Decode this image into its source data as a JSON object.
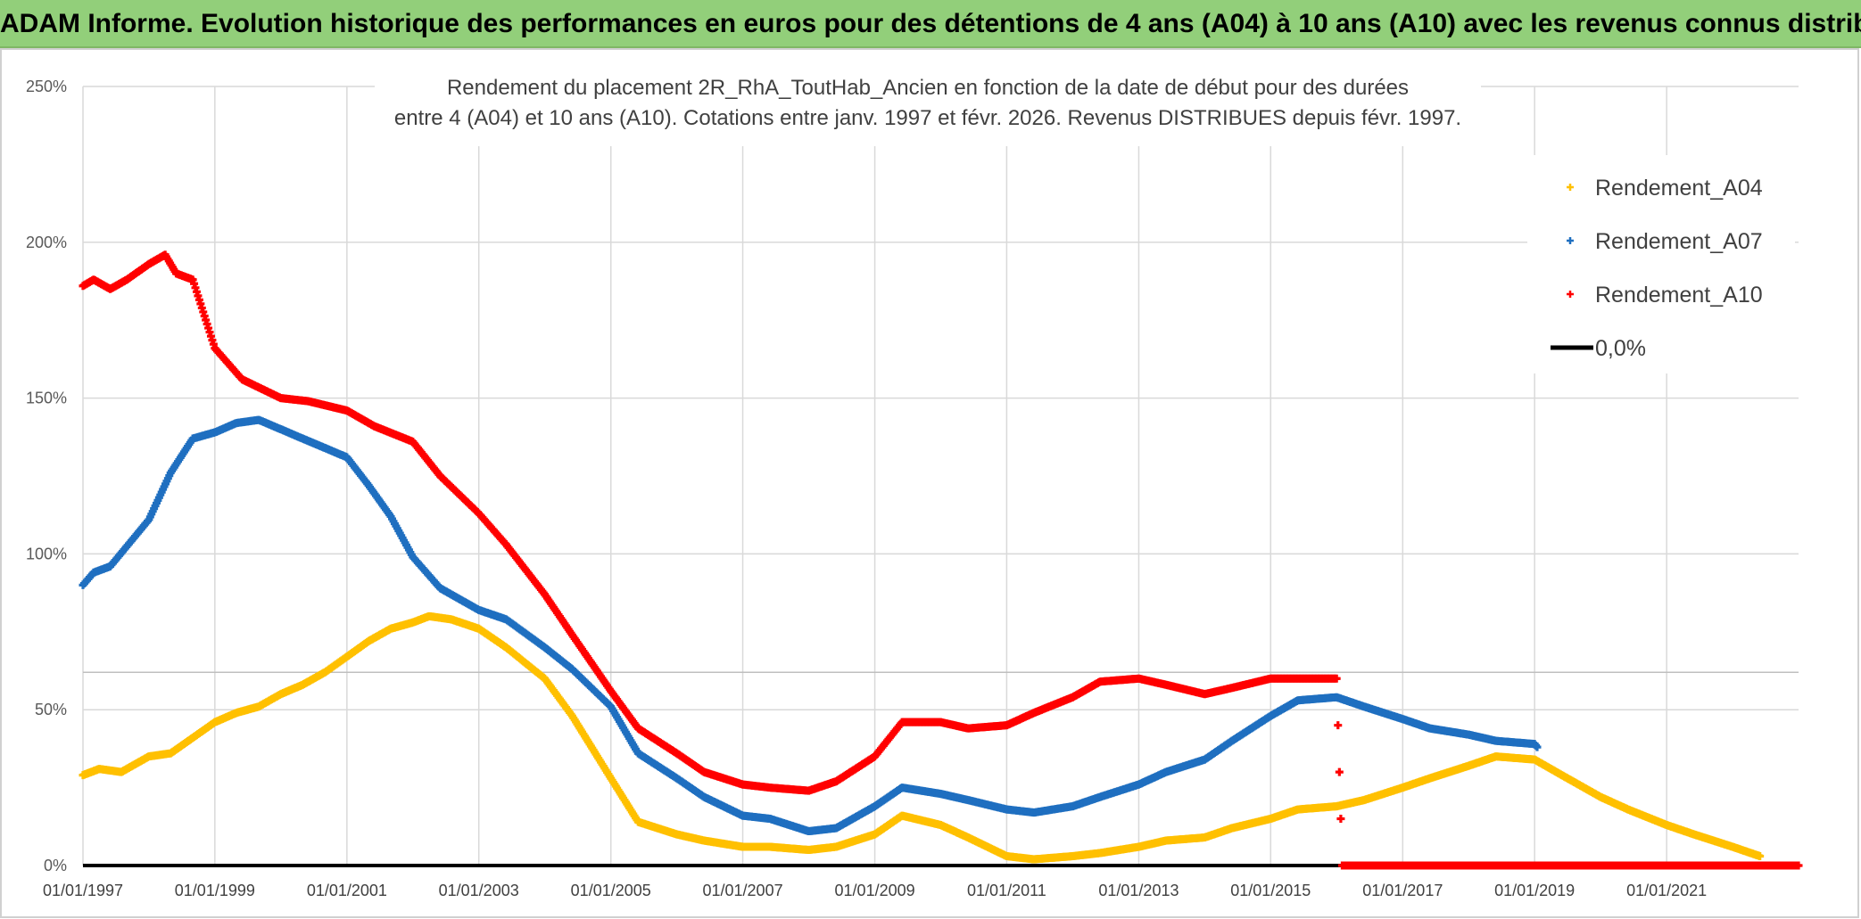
{
  "header": {
    "title": "ADAM Informe. Evolution historique des performances en euros pour des détentions de 4 ans (A04) à 10 ans (A10) avec les revenus connus distribués"
  },
  "chart_data": {
    "type": "scatter",
    "title": "Rendement du placement 2R_RhA_ToutHab_Ancien en fonction de la date de début pour des durées",
    "subtitle": "entre 4 (A04) et 10 ans (A10). Cotations entre janv. 1997 et févr. 2026. Revenus DISTRIBUES depuis févr. 1997.",
    "xlabel": "",
    "ylabel": "",
    "xlim": [
      "1997-01-01",
      "2023-01-01"
    ],
    "ylim": [
      0,
      250
    ],
    "x_tick_labels": [
      "01/01/1997",
      "01/01/1999",
      "01/01/2001",
      "01/01/2003",
      "01/01/2005",
      "01/01/2007",
      "01/01/2009",
      "01/01/2011",
      "01/01/2013",
      "01/01/2015",
      "01/01/2017",
      "01/01/2019",
      "01/01/2021"
    ],
    "y_tick_labels": [
      "0%",
      "50%",
      "100%",
      "150%",
      "200%",
      "250%"
    ],
    "y_ticks": [
      0,
      50,
      100,
      150,
      200,
      250
    ],
    "grid": true,
    "legend_position": "top-right",
    "series": [
      {
        "name": "Rendement_A04",
        "color": "#ffc000",
        "points": [
          [
            "1997-01-01",
            29
          ],
          [
            "1997-04-01",
            31
          ],
          [
            "1997-08-01",
            30
          ],
          [
            "1998-01-01",
            35
          ],
          [
            "1998-05-01",
            36
          ],
          [
            "1998-09-01",
            41
          ],
          [
            "1999-01-01",
            46
          ],
          [
            "1999-05-01",
            49
          ],
          [
            "1999-09-01",
            51
          ],
          [
            "2000-01-01",
            55
          ],
          [
            "2000-05-01",
            58
          ],
          [
            "2000-09-01",
            62
          ],
          [
            "2001-01-01",
            67
          ],
          [
            "2001-05-01",
            72
          ],
          [
            "2001-09-01",
            76
          ],
          [
            "2002-01-01",
            78
          ],
          [
            "2002-04-01",
            80
          ],
          [
            "2002-08-01",
            79
          ],
          [
            "2003-01-01",
            76
          ],
          [
            "2003-06-01",
            70
          ],
          [
            "2004-01-01",
            60
          ],
          [
            "2004-06-01",
            48
          ],
          [
            "2005-01-01",
            28
          ],
          [
            "2005-06-01",
            14
          ],
          [
            "2006-01-01",
            10
          ],
          [
            "2006-06-01",
            8
          ],
          [
            "2007-01-01",
            6
          ],
          [
            "2007-06-01",
            6
          ],
          [
            "2008-01-01",
            5
          ],
          [
            "2008-06-01",
            6
          ],
          [
            "2009-01-01",
            10
          ],
          [
            "2009-06-01",
            16
          ],
          [
            "2010-01-01",
            13
          ],
          [
            "2010-06-01",
            9
          ],
          [
            "2011-01-01",
            3
          ],
          [
            "2011-06-01",
            2
          ],
          [
            "2012-01-01",
            3
          ],
          [
            "2012-06-01",
            4
          ],
          [
            "2013-01-01",
            6
          ],
          [
            "2013-06-01",
            8
          ],
          [
            "2014-01-01",
            9
          ],
          [
            "2014-06-01",
            12
          ],
          [
            "2015-01-01",
            15
          ],
          [
            "2015-06-01",
            18
          ],
          [
            "2016-01-01",
            19
          ],
          [
            "2016-06-01",
            21
          ],
          [
            "2017-01-01",
            25
          ],
          [
            "2017-06-01",
            28
          ],
          [
            "2018-01-01",
            32
          ],
          [
            "2018-06-01",
            35
          ],
          [
            "2019-01-01",
            34
          ],
          [
            "2019-06-01",
            29
          ],
          [
            "2020-01-01",
            22
          ],
          [
            "2020-06-01",
            18
          ],
          [
            "2021-01-01",
            13
          ],
          [
            "2021-06-01",
            10
          ],
          [
            "2022-01-01",
            6
          ],
          [
            "2022-06-01",
            3
          ]
        ]
      },
      {
        "name": "Rendement_A07",
        "color": "#1f6fc0",
        "points": [
          [
            "1997-01-01",
            90
          ],
          [
            "1997-03-01",
            94
          ],
          [
            "1997-06-01",
            96
          ],
          [
            "1998-01-01",
            111
          ],
          [
            "1998-05-01",
            126
          ],
          [
            "1998-09-01",
            137
          ],
          [
            "1999-01-01",
            139
          ],
          [
            "1999-05-01",
            142
          ],
          [
            "1999-09-01",
            143
          ],
          [
            "2000-01-01",
            140
          ],
          [
            "2000-05-01",
            137
          ],
          [
            "2000-09-01",
            134
          ],
          [
            "2001-01-01",
            131
          ],
          [
            "2001-05-01",
            122
          ],
          [
            "2001-09-01",
            112
          ],
          [
            "2002-01-01",
            99
          ],
          [
            "2002-06-01",
            89
          ],
          [
            "2003-01-01",
            82
          ],
          [
            "2003-06-01",
            79
          ],
          [
            "2004-01-01",
            70
          ],
          [
            "2004-06-01",
            63
          ],
          [
            "2005-01-01",
            51
          ],
          [
            "2005-06-01",
            36
          ],
          [
            "2006-01-01",
            28
          ],
          [
            "2006-06-01",
            22
          ],
          [
            "2007-01-01",
            16
          ],
          [
            "2007-06-01",
            15
          ],
          [
            "2008-01-01",
            11
          ],
          [
            "2008-06-01",
            12
          ],
          [
            "2009-01-01",
            19
          ],
          [
            "2009-06-01",
            25
          ],
          [
            "2010-01-01",
            23
          ],
          [
            "2010-06-01",
            21
          ],
          [
            "2011-01-01",
            18
          ],
          [
            "2011-06-01",
            17
          ],
          [
            "2012-01-01",
            19
          ],
          [
            "2012-06-01",
            22
          ],
          [
            "2013-01-01",
            26
          ],
          [
            "2013-06-01",
            30
          ],
          [
            "2014-01-01",
            34
          ],
          [
            "2014-06-01",
            40
          ],
          [
            "2015-01-01",
            48
          ],
          [
            "2015-06-01",
            53
          ],
          [
            "2016-01-01",
            54
          ],
          [
            "2016-06-01",
            51
          ],
          [
            "2017-01-01",
            47
          ],
          [
            "2017-06-01",
            44
          ],
          [
            "2018-01-01",
            42
          ],
          [
            "2018-06-01",
            40
          ],
          [
            "2019-01-01",
            39
          ],
          [
            "2019-01-15",
            38
          ]
        ]
      },
      {
        "name": "Rendement_A10",
        "color": "#ff0000",
        "points": [
          [
            "1997-01-01",
            186
          ],
          [
            "1997-03-01",
            188
          ],
          [
            "1997-06-01",
            185
          ],
          [
            "1997-09-01",
            188
          ],
          [
            "1998-01-01",
            193
          ],
          [
            "1998-04-01",
            196
          ],
          [
            "1998-06-01",
            190
          ],
          [
            "1998-09-01",
            188
          ],
          [
            "1999-01-01",
            166
          ],
          [
            "1999-06-01",
            156
          ],
          [
            "2000-01-01",
            150
          ],
          [
            "2000-06-01",
            149
          ],
          [
            "2001-01-01",
            146
          ],
          [
            "2001-06-01",
            141
          ],
          [
            "2002-01-01",
            136
          ],
          [
            "2002-06-01",
            125
          ],
          [
            "2003-01-01",
            113
          ],
          [
            "2003-06-01",
            103
          ],
          [
            "2004-01-01",
            87
          ],
          [
            "2004-06-01",
            74
          ],
          [
            "2005-01-01",
            56
          ],
          [
            "2005-06-01",
            44
          ],
          [
            "2006-01-01",
            36
          ],
          [
            "2006-06-01",
            30
          ],
          [
            "2007-01-01",
            26
          ],
          [
            "2007-06-01",
            25
          ],
          [
            "2008-01-01",
            24
          ],
          [
            "2008-06-01",
            27
          ],
          [
            "2009-01-01",
            35
          ],
          [
            "2009-06-01",
            46
          ],
          [
            "2010-01-01",
            46
          ],
          [
            "2010-06-01",
            44
          ],
          [
            "2011-01-01",
            45
          ],
          [
            "2011-06-01",
            49
          ],
          [
            "2012-01-01",
            54
          ],
          [
            "2012-06-01",
            59
          ],
          [
            "2013-01-01",
            60
          ],
          [
            "2013-06-01",
            58
          ],
          [
            "2014-01-01",
            55
          ],
          [
            "2014-06-01",
            57
          ],
          [
            "2015-01-01",
            60
          ],
          [
            "2015-06-01",
            60
          ],
          [
            "2016-01-01",
            60
          ],
          [
            "2016-02-01",
            0
          ],
          [
            "2023-01-01",
            0
          ]
        ]
      }
    ],
    "reference_line": {
      "name": "0,0%",
      "value": 0,
      "color": "#000000"
    }
  }
}
